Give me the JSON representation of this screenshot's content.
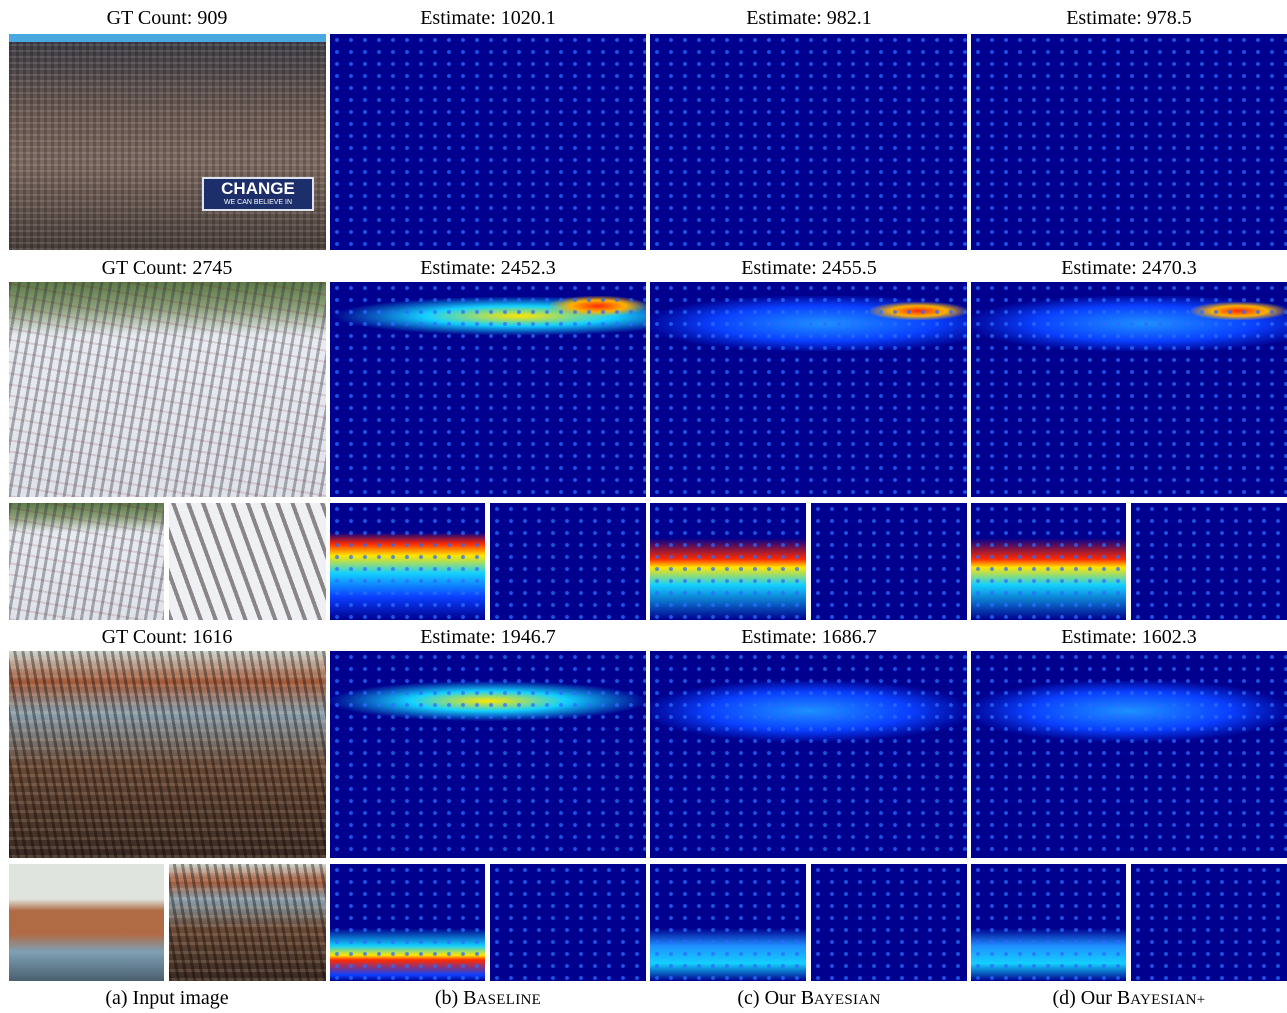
{
  "rows": [
    {
      "gt_label": "GT Count: 909",
      "estimates": [
        "Estimate: 1020.1",
        "Estimate: 982.1",
        "Estimate: 978.5"
      ]
    },
    {
      "gt_label": "GT Count: 2745",
      "estimates": [
        "Estimate: 2452.3",
        "Estimate: 2455.5",
        "Estimate: 2470.3"
      ]
    },
    {
      "gt_label": "GT Count: 1616",
      "estimates": [
        "Estimate: 1946.7",
        "Estimate: 1686.7",
        "Estimate: 1602.3"
      ]
    }
  ],
  "banner": {
    "title": "CHANGE",
    "subtitle": "WE CAN BELIEVE IN"
  },
  "captions": {
    "input": "(a) Input image",
    "baseline_prefix": "(b) B",
    "baseline_rest": "ASELINE",
    "bayesian_prefix": "(c) Our B",
    "bayesian_rest": "AYESIAN",
    "bayesianplus_prefix": "(d) Our B",
    "bayesianplus_rest": "AYESIAN+"
  },
  "colors": {
    "density_bg": "#00008e",
    "hot": "#ff2a00",
    "warm": "#ffe600",
    "cool": "#2a6cff"
  }
}
